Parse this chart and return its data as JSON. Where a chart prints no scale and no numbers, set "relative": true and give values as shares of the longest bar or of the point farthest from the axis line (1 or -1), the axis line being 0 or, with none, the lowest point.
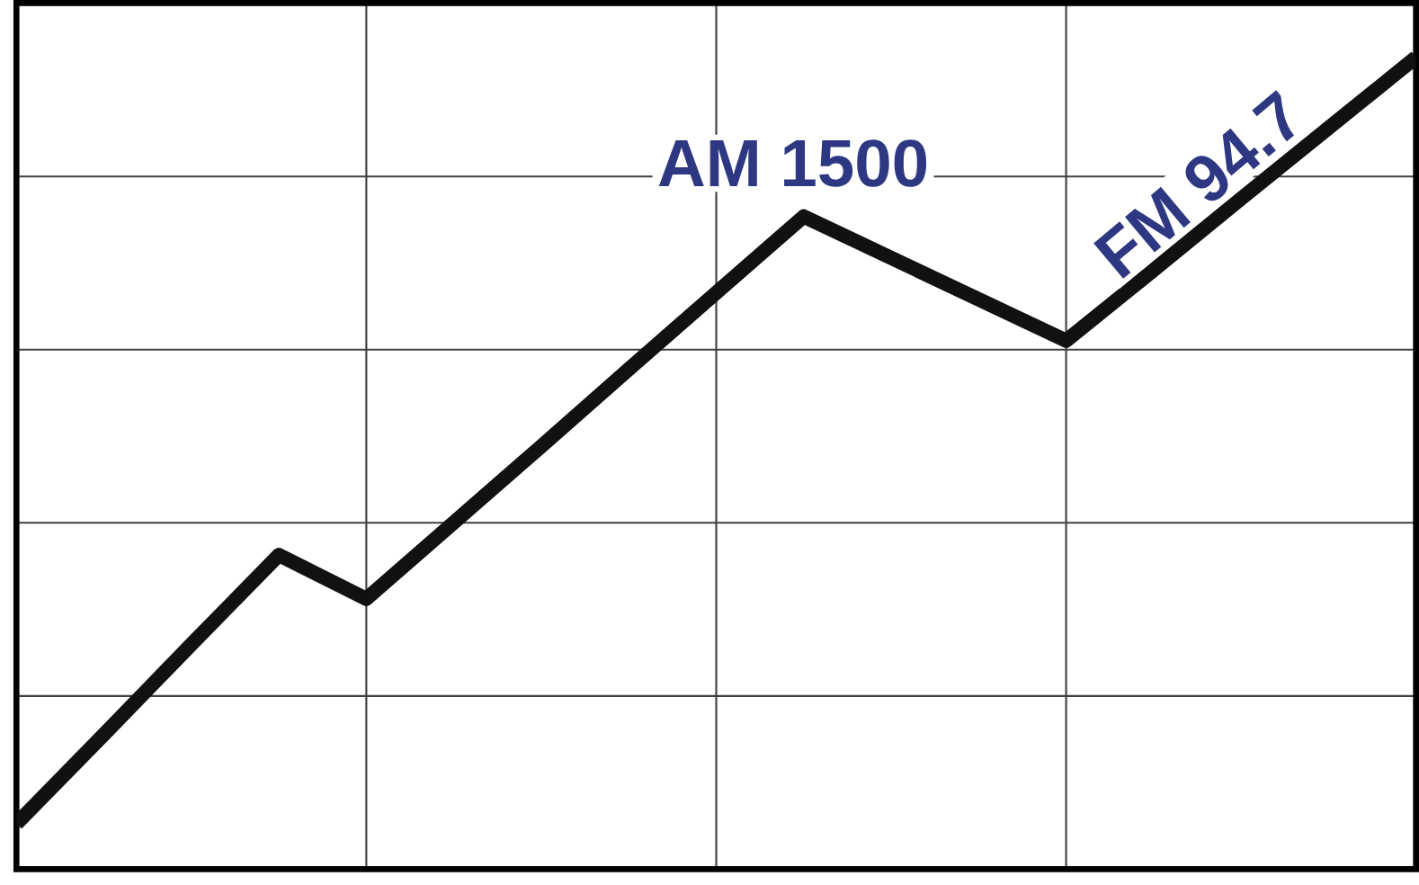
{
  "chart_data": {
    "type": "line",
    "relative": true,
    "categories": [
      null,
      null,
      null,
      null,
      null,
      null,
      null,
      null,
      null,
      null,
      null,
      null,
      null,
      null,
      null,
      null,
      null
    ],
    "series": [
      {
        "color": "#111111",
        "values": [
          0.056,
          0.166,
          0.277,
          0.387,
          0.333,
          0.427,
          0.521,
          0.616,
          0.71,
          0.804,
          0.753,
          0.702,
          0.651,
          0.738,
          0.826,
          0.913,
          1.0
        ]
      }
    ],
    "grid": true,
    "tick_labels": false,
    "marker": "none",
    "line_style": "solid",
    "annotations": [
      "AM 1500",
      "FM 94.7"
    ]
  }
}
